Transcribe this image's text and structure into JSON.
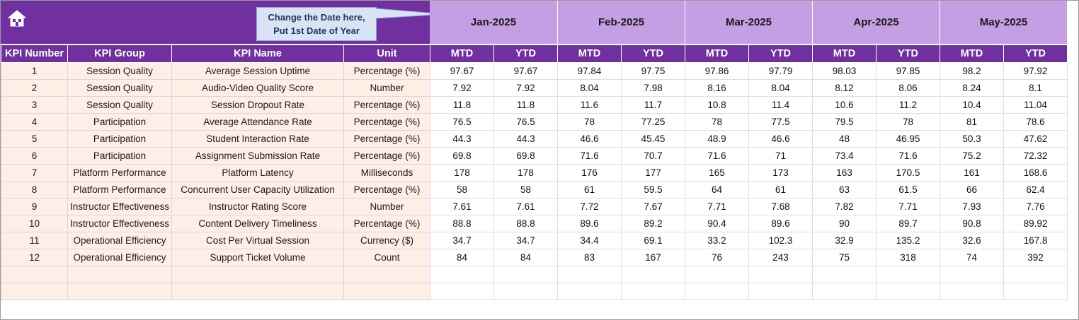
{
  "header": {
    "home_icon": "home-icon",
    "callout_text": [
      "Change the Date here,",
      "Put 1st Date of Year"
    ],
    "months": [
      "Jan-2025",
      "Feb-2025",
      "Mar-2025",
      "Apr-2025",
      "May-2025"
    ]
  },
  "columns": {
    "kpi_number": "KPI Number",
    "kpi_group": "KPI Group",
    "kpi_name": "KPI Name",
    "unit": "Unit",
    "mtd": "MTD",
    "ytd": "YTD"
  },
  "colors": {
    "header_purple": "#7030a0",
    "month_band": "#c59fe3",
    "left_fill": "#fdeee6",
    "callout_fill": "#dae3f3"
  },
  "rows": [
    {
      "num": "1",
      "group": "Session Quality",
      "name": "Average Session Uptime",
      "unit": "Percentage (%)",
      "values": [
        "97.67",
        "97.67",
        "97.84",
        "97.75",
        "97.86",
        "97.79",
        "98.03",
        "97.85",
        "98.2",
        "97.92"
      ]
    },
    {
      "num": "2",
      "group": "Session Quality",
      "name": "Audio-Video Quality Score",
      "unit": "Number",
      "values": [
        "7.92",
        "7.92",
        "8.04",
        "7.98",
        "8.16",
        "8.04",
        "8.12",
        "8.06",
        "8.24",
        "8.1"
      ]
    },
    {
      "num": "3",
      "group": "Session Quality",
      "name": "Session Dropout Rate",
      "unit": "Percentage (%)",
      "values": [
        "11.8",
        "11.8",
        "11.6",
        "11.7",
        "10.8",
        "11.4",
        "10.6",
        "11.2",
        "10.4",
        "11.04"
      ]
    },
    {
      "num": "4",
      "group": "Participation",
      "name": "Average Attendance Rate",
      "unit": "Percentage (%)",
      "values": [
        "76.5",
        "76.5",
        "78",
        "77.25",
        "78",
        "77.5",
        "79.5",
        "78",
        "81",
        "78.6"
      ]
    },
    {
      "num": "5",
      "group": "Participation",
      "name": "Student Interaction Rate",
      "unit": "Percentage (%)",
      "values": [
        "44.3",
        "44.3",
        "46.6",
        "45.45",
        "48.9",
        "46.6",
        "48",
        "46.95",
        "50.3",
        "47.62"
      ]
    },
    {
      "num": "6",
      "group": "Participation",
      "name": "Assignment Submission Rate",
      "unit": "Percentage (%)",
      "values": [
        "69.8",
        "69.8",
        "71.6",
        "70.7",
        "71.6",
        "71",
        "73.4",
        "71.6",
        "75.2",
        "72.32"
      ]
    },
    {
      "num": "7",
      "group": "Platform Performance",
      "name": "Platform Latency",
      "unit": "Milliseconds",
      "values": [
        "178",
        "178",
        "176",
        "177",
        "165",
        "173",
        "163",
        "170.5",
        "161",
        "168.6"
      ]
    },
    {
      "num": "8",
      "group": "Platform Performance",
      "name": "Concurrent User Capacity Utilization",
      "unit": "Percentage (%)",
      "values": [
        "58",
        "58",
        "61",
        "59.5",
        "64",
        "61",
        "63",
        "61.5",
        "66",
        "62.4"
      ]
    },
    {
      "num": "9",
      "group": "Instructor Effectiveness",
      "name": "Instructor Rating Score",
      "unit": "Number",
      "values": [
        "7.61",
        "7.61",
        "7.72",
        "7.67",
        "7.71",
        "7.68",
        "7.82",
        "7.71",
        "7.93",
        "7.76"
      ]
    },
    {
      "num": "10",
      "group": "Instructor Effectiveness",
      "name": "Content Delivery Timeliness",
      "unit": "Percentage (%)",
      "values": [
        "88.8",
        "88.8",
        "89.6",
        "89.2",
        "90.4",
        "89.6",
        "90",
        "89.7",
        "90.8",
        "89.92"
      ]
    },
    {
      "num": "11",
      "group": "Operational Efficiency",
      "name": "Cost Per Virtual Session",
      "unit": "Currency ($)",
      "values": [
        "34.7",
        "34.7",
        "34.4",
        "69.1",
        "33.2",
        "102.3",
        "32.9",
        "135.2",
        "32.6",
        "167.8"
      ]
    },
    {
      "num": "12",
      "group": "Operational Efficiency",
      "name": "Support Ticket Volume",
      "unit": "Count",
      "values": [
        "84",
        "84",
        "83",
        "167",
        "76",
        "243",
        "75",
        "318",
        "74",
        "392"
      ]
    }
  ],
  "blank_rows": 2
}
